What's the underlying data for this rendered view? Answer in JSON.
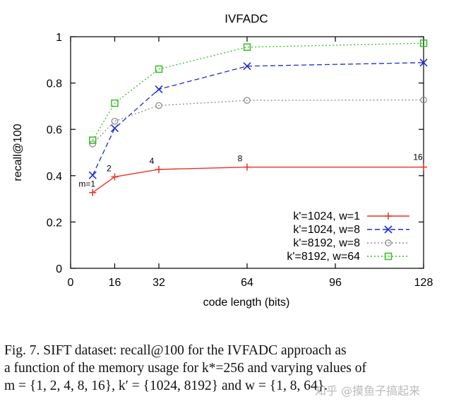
{
  "chart_data": {
    "type": "line",
    "title": "IVFADC",
    "xlabel": "code length (bits)",
    "ylabel": "recall@100",
    "xlim": [
      0,
      128
    ],
    "ylim": [
      0,
      1
    ],
    "xticks": [
      0,
      16,
      32,
      64,
      96,
      128
    ],
    "yticks": [
      0,
      0.2,
      0.4,
      0.6,
      0.8,
      1
    ],
    "ytick_labels": [
      "0",
      "0.2",
      "0.4",
      "0.6",
      "0.8",
      "1"
    ],
    "legend_position": "bottom-right",
    "point_annotations": [
      {
        "x": 8,
        "y": 0.327,
        "text": "m=1"
      },
      {
        "x": 16,
        "y": 0.395,
        "text": "2"
      },
      {
        "x": 32,
        "y": 0.427,
        "text": "4"
      },
      {
        "x": 64,
        "y": 0.437,
        "text": "8"
      },
      {
        "x": 128,
        "y": 0.437,
        "text": "16"
      }
    ],
    "series": [
      {
        "name": "k'=1024, w=1",
        "color": "#e8332a",
        "dash": "solid",
        "marker": "plus",
        "x": [
          8,
          16,
          32,
          64,
          128
        ],
        "values": [
          0.327,
          0.395,
          0.427,
          0.437,
          0.437
        ]
      },
      {
        "name": "k'=1024, w=8",
        "color": "#1f2bd4",
        "dash": "dashed",
        "marker": "cross",
        "x": [
          8,
          16,
          32,
          64,
          128
        ],
        "values": [
          0.402,
          0.605,
          0.773,
          0.873,
          0.888
        ]
      },
      {
        "name": "k'=8192, w=8",
        "color": "#8c8c8c",
        "dash": "dotted",
        "marker": "circle",
        "x": [
          8,
          16,
          32,
          64,
          128
        ],
        "values": [
          0.537,
          0.635,
          0.703,
          0.725,
          0.727
        ]
      },
      {
        "name": "k'=8192, w=64",
        "color": "#33c11f",
        "dash": "dotted",
        "marker": "square",
        "x": [
          8,
          16,
          32,
          64,
          128
        ],
        "values": [
          0.553,
          0.713,
          0.86,
          0.955,
          0.972
        ]
      }
    ]
  },
  "caption": {
    "line1": "Fig. 7.    SIFT dataset: recall@100 for the IVFADC approach as",
    "line2": "a function of the memory usage for k*=256 and varying values of",
    "line3": "m = {1, 2, 4, 8, 16}, k′ = {1024, 8192} and w = {1, 8, 64}."
  },
  "watermark": "知乎 @摸鱼子搞起来"
}
